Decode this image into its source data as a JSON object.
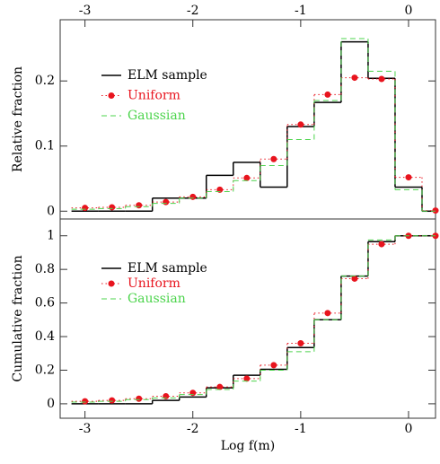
{
  "chart_data": [
    {
      "type": "step",
      "ylabel": "Relative fraction",
      "xlim": [
        -3.23,
        0.25
      ],
      "xticks": [
        -3,
        -2,
        -1,
        0
      ],
      "xtick_side": "top",
      "ylim": [
        -0.012,
        0.294
      ],
      "yticks": [
        0,
        0.1,
        0.2
      ],
      "legend": "upper left",
      "x": [
        -3,
        -2.75,
        -2.5,
        -2.25,
        -2,
        -1.75,
        -1.5,
        -1.25,
        -1,
        -0.75,
        -0.5,
        -0.25,
        0,
        0.25
      ],
      "series": [
        {
          "name": "ELM sample",
          "color": "#000000",
          "style": "solid",
          "values": [
            0,
            0,
            0,
            0.02,
            0.02,
            0.055,
            0.075,
            0.037,
            0.13,
            0.167,
            0.26,
            0.204,
            0.037,
            0
          ]
        },
        {
          "name": "Uniform",
          "color": "#e8141e",
          "style": "dotted",
          "marker": "dot",
          "values": [
            0.005,
            0.006,
            0.009,
            0.014,
            0.022,
            0.033,
            0.051,
            0.08,
            0.133,
            0.179,
            0.205,
            0.203,
            0.052,
            0.001
          ]
        },
        {
          "name": "Gaussian",
          "color": "#4cd44c",
          "style": "dashed",
          "values": [
            0.003,
            0.004,
            0.007,
            0.012,
            0.02,
            0.03,
            0.047,
            0.07,
            0.11,
            0.17,
            0.265,
            0.215,
            0.033,
            0
          ]
        }
      ]
    },
    {
      "type": "step",
      "ylabel": "Cumulative fraction",
      "xlabel": "Log f(m)",
      "xlim": [
        -3.23,
        0.25
      ],
      "xticks": [
        -3,
        -2,
        -1,
        0
      ],
      "xtick_side": "bottom",
      "ylim": [
        -0.086,
        1.1
      ],
      "yticks": [
        0,
        0.2,
        0.4,
        0.6,
        0.8,
        1
      ],
      "legend": "upper left",
      "x": [
        -3,
        -2.75,
        -2.5,
        -2.25,
        -2,
        -1.75,
        -1.5,
        -1.25,
        -1,
        -0.75,
        -0.5,
        -0.25,
        0,
        0.25
      ],
      "series": [
        {
          "name": "ELM sample",
          "color": "#000000",
          "style": "solid",
          "values": [
            0,
            0,
            0,
            0.02,
            0.04,
            0.095,
            0.17,
            0.205,
            0.335,
            0.5,
            0.76,
            0.965,
            1,
            1
          ]
        },
        {
          "name": "Uniform",
          "color": "#e8141e",
          "style": "dotted",
          "marker": "dot",
          "values": [
            0.015,
            0.02,
            0.03,
            0.045,
            0.065,
            0.1,
            0.15,
            0.23,
            0.36,
            0.54,
            0.745,
            0.95,
            1,
            1
          ]
        },
        {
          "name": "Gaussian",
          "color": "#4cd44c",
          "style": "dashed",
          "values": [
            0.01,
            0.015,
            0.025,
            0.035,
            0.055,
            0.085,
            0.135,
            0.2,
            0.31,
            0.5,
            0.76,
            0.975,
            1,
            1
          ]
        }
      ]
    }
  ]
}
